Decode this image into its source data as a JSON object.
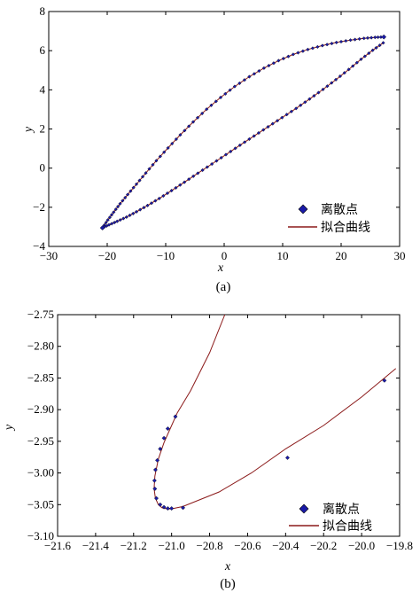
{
  "chart_data": [
    {
      "type": "scatter",
      "caption": "(a)",
      "xlabel": "x",
      "ylabel": "y",
      "xlim": [
        -30,
        30
      ],
      "ylim": [
        -4,
        8
      ],
      "xticks": [
        "−30",
        "−20",
        "−10",
        "0",
        "10",
        "20",
        "30"
      ],
      "yticks": [
        "−4",
        "−2",
        "0",
        "2",
        "4",
        "6",
        "8"
      ],
      "grid": false,
      "legend_position": "bottom-right",
      "series": [
        {
          "name": "离散点",
          "kind": "markers",
          "color": "#1a1aa8",
          "marker": "diamond",
          "upper_x": [
            -20.8,
            -19.9,
            -18.9,
            -17.8,
            -16.5,
            -15.0,
            -13.4,
            -11.6,
            -9.6,
            -7.5,
            -5.3,
            -3.0,
            -0.6,
            1.8,
            4.3,
            6.8,
            9.3,
            11.8,
            14.3,
            16.8,
            19.2,
            21.6,
            23.9,
            25.8,
            27.3
          ],
          "upper_y": [
            -3.05,
            -2.65,
            -2.25,
            -1.82,
            -1.35,
            -0.82,
            -0.25,
            0.38,
            1.03,
            1.7,
            2.36,
            3.01,
            3.61,
            4.17,
            4.67,
            5.11,
            5.49,
            5.81,
            6.06,
            6.26,
            6.42,
            6.54,
            6.63,
            6.68,
            6.7
          ],
          "lower_x": [
            -20.9,
            -19.7,
            -18.3,
            -16.7,
            -15.0,
            -13.1,
            -11.1,
            -9.0,
            -6.8,
            -4.5,
            -2.1,
            0.3,
            2.7,
            5.1,
            7.5,
            9.9,
            12.3,
            14.6,
            16.9,
            19.1,
            21.3,
            23.4,
            25.4,
            27.2
          ],
          "lower_y": [
            -3.06,
            -2.9,
            -2.72,
            -2.5,
            -2.23,
            -1.91,
            -1.55,
            -1.15,
            -0.72,
            -0.26,
            0.21,
            0.69,
            1.17,
            1.64,
            2.11,
            2.58,
            3.05,
            3.53,
            4.02,
            4.52,
            5.04,
            5.56,
            6.02,
            6.4
          ]
        },
        {
          "name": "拟合曲线",
          "kind": "line",
          "color": "#8b1a1a"
        }
      ]
    },
    {
      "type": "scatter",
      "caption": "(b)",
      "xlabel": "x",
      "ylabel": "y",
      "xlim": [
        -21.6,
        -19.8
      ],
      "ylim": [
        -3.1,
        -2.75
      ],
      "xticks": [
        "−21.6",
        "−21.4",
        "−21.2",
        "−21.0",
        "−20.8",
        "−20.6",
        "−20.4",
        "−20.2",
        "−20.0",
        "−19.8"
      ],
      "yticks": [
        "−3.10",
        "−3.05",
        "−3.00",
        "−2.95",
        "−2.90",
        "−2.85",
        "−2.80",
        "−2.75"
      ],
      "grid": false,
      "legend_position": "bottom-right",
      "series": [
        {
          "name": "离散点",
          "kind": "markers",
          "color": "#1a1aa8",
          "marker": "diamond",
          "x": [
            -20.98,
            -21.02,
            -21.04,
            -21.06,
            -21.075,
            -21.085,
            -21.09,
            -21.088,
            -21.08,
            -21.06,
            -21.04,
            -21.02,
            -21.0,
            -20.94,
            -20.39,
            -19.88
          ],
          "y": [
            -2.911,
            -2.93,
            -2.945,
            -2.962,
            -2.98,
            -2.995,
            -3.012,
            -3.025,
            -3.04,
            -3.05,
            -3.054,
            -3.056,
            -3.056,
            -3.055,
            -2.976,
            -2.854
          ]
        },
        {
          "name": "拟合曲线",
          "kind": "line",
          "color": "#8b1a1a",
          "x": [
            -20.72,
            -20.8,
            -20.9,
            -20.97,
            -21.0,
            -21.04,
            -21.07,
            -21.088,
            -21.092,
            -21.085,
            -21.07,
            -21.05,
            -21.02,
            -20.99,
            -20.94,
            -20.75,
            -20.58,
            -20.4,
            -20.2,
            -20.0,
            -19.82
          ],
          "y": [
            -2.75,
            -2.81,
            -2.87,
            -2.905,
            -2.925,
            -2.952,
            -2.978,
            -3.005,
            -3.025,
            -3.04,
            -3.05,
            -3.055,
            -3.057,
            -3.056,
            -3.053,
            -3.03,
            -3.0,
            -2.962,
            -2.925,
            -2.88,
            -2.835
          ]
        }
      ]
    }
  ]
}
